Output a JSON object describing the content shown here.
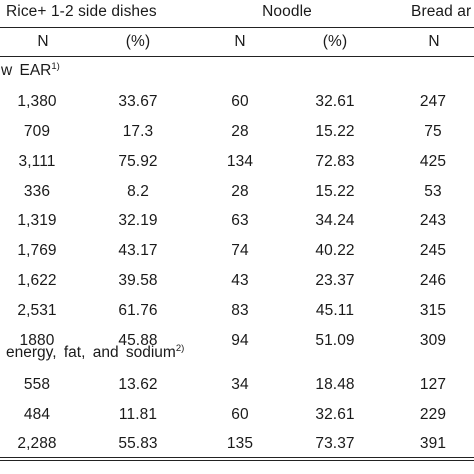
{
  "header": {
    "groups": [
      {
        "label": "Rice+ 1-2 side dishes"
      },
      {
        "label": "Noodle"
      },
      {
        "label": "Bread ar"
      }
    ],
    "subheaders": [
      "N",
      "(%)",
      "N",
      "(%)",
      "N"
    ]
  },
  "sections": [
    {
      "label": "w EAR",
      "note": "1)",
      "rows": [
        [
          "1,380",
          "33.67",
          "60",
          "32.61",
          "247"
        ],
        [
          "709",
          "17.3",
          "28",
          "15.22",
          "75"
        ],
        [
          "3,111",
          "75.92",
          "134",
          "72.83",
          "425"
        ],
        [
          "336",
          "8.2",
          "28",
          "15.22",
          "53"
        ],
        [
          "1,319",
          "32.19",
          "63",
          "34.24",
          "243"
        ],
        [
          "1,769",
          "43.17",
          "74",
          "40.22",
          "245"
        ],
        [
          "1,622",
          "39.58",
          "43",
          "23.37",
          "246"
        ],
        [
          "2,531",
          "61.76",
          "83",
          "45.11",
          "315"
        ],
        [
          "1880",
          "45.88",
          "94",
          "51.09",
          "309"
        ]
      ]
    },
    {
      "label": "energy, fat, and sodium",
      "note": "2)",
      "rows": [
        [
          "558",
          "13.62",
          "34",
          "18.48",
          "127"
        ],
        [
          "484",
          "11.81",
          "60",
          "32.61",
          "229"
        ],
        [
          "2,288",
          "55.83",
          "135",
          "73.37",
          "391"
        ]
      ]
    }
  ]
}
